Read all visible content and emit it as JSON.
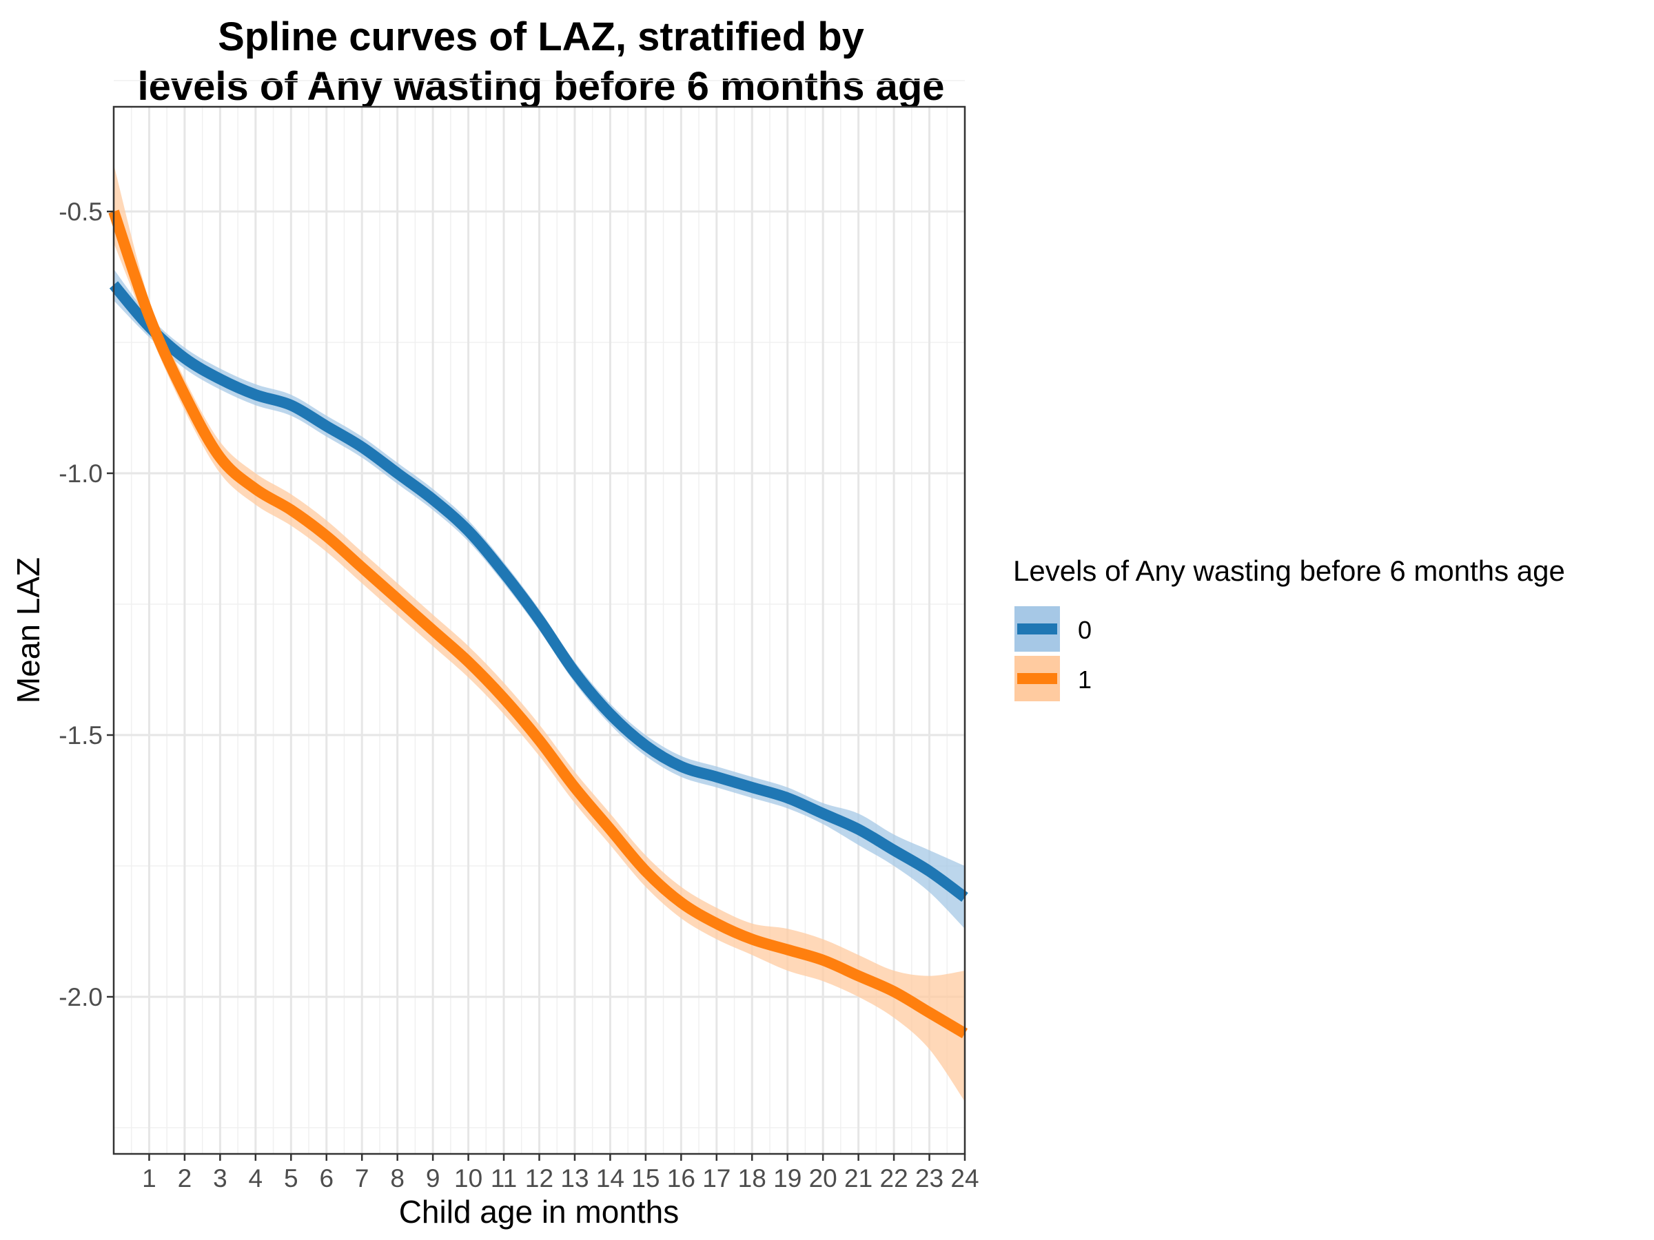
{
  "chart_data": {
    "type": "line",
    "title_lines": [
      "Spline curves of LAZ, stratified by",
      "levels of Any wasting before 6 months age"
    ],
    "xlabel": "Child age in months",
    "ylabel": "Mean LAZ",
    "xlim": [
      0,
      24
    ],
    "ylim": [
      -2.3,
      -0.3
    ],
    "x_ticks": [
      1,
      2,
      3,
      4,
      5,
      6,
      7,
      8,
      9,
      10,
      11,
      12,
      13,
      14,
      15,
      16,
      17,
      18,
      19,
      20,
      21,
      22,
      23,
      24
    ],
    "x_tick_labels": [
      "1",
      "2",
      "3",
      "4",
      "5",
      "6",
      "7",
      "8",
      "9",
      "10",
      "11",
      "12",
      "13",
      "14",
      "15",
      "16",
      "17",
      "18",
      "19",
      "20",
      "21",
      "22",
      "23",
      "24"
    ],
    "y_ticks": [
      -2.0,
      -1.5,
      -1.0,
      -0.5
    ],
    "y_tick_labels": [
      "-2.0",
      "-1.5",
      "-1.0",
      "-0.5"
    ],
    "y_minor_ticks": [
      -2.25,
      -1.75,
      -1.25,
      -0.75,
      -0.25
    ],
    "grid": true,
    "legend": {
      "title": "Levels of Any wasting before 6 months age",
      "position": "right"
    },
    "x": [
      0,
      1,
      2,
      3,
      4,
      5,
      6,
      7,
      8,
      9,
      10,
      11,
      12,
      13,
      14,
      15,
      16,
      17,
      18,
      19,
      20,
      21,
      22,
      23,
      24
    ],
    "series": [
      {
        "name": "0",
        "color": "#1F77B4",
        "band_color": "#A6C8E6",
        "values": [
          -0.64,
          -0.72,
          -0.78,
          -0.82,
          -0.85,
          -0.87,
          -0.91,
          -0.95,
          -1.0,
          -1.05,
          -1.11,
          -1.19,
          -1.28,
          -1.38,
          -1.46,
          -1.52,
          -1.56,
          -1.58,
          -1.6,
          -1.62,
          -1.65,
          -1.68,
          -1.72,
          -1.76,
          -1.81
        ],
        "lower": [
          -0.67,
          -0.74,
          -0.8,
          -0.84,
          -0.87,
          -0.89,
          -0.93,
          -0.97,
          -1.02,
          -1.07,
          -1.13,
          -1.21,
          -1.3,
          -1.4,
          -1.48,
          -1.54,
          -1.58,
          -1.6,
          -1.62,
          -1.64,
          -1.67,
          -1.71,
          -1.75,
          -1.8,
          -1.87
        ],
        "upper": [
          -0.61,
          -0.7,
          -0.76,
          -0.8,
          -0.83,
          -0.85,
          -0.89,
          -0.93,
          -0.98,
          -1.03,
          -1.09,
          -1.17,
          -1.26,
          -1.36,
          -1.44,
          -1.5,
          -1.54,
          -1.56,
          -1.58,
          -1.6,
          -1.63,
          -1.65,
          -1.69,
          -1.72,
          -1.75
        ]
      },
      {
        "name": "1",
        "color": "#FF7F0E",
        "band_color": "#FFCBA0",
        "values": [
          -0.5,
          -0.7,
          -0.85,
          -0.97,
          -1.03,
          -1.07,
          -1.12,
          -1.18,
          -1.24,
          -1.3,
          -1.36,
          -1.43,
          -1.51,
          -1.6,
          -1.68,
          -1.76,
          -1.82,
          -1.86,
          -1.89,
          -1.91,
          -1.93,
          -1.96,
          -1.99,
          -2.03,
          -2.07
        ],
        "lower": [
          -0.56,
          -0.73,
          -0.88,
          -1.0,
          -1.06,
          -1.1,
          -1.15,
          -1.21,
          -1.27,
          -1.33,
          -1.39,
          -1.46,
          -1.54,
          -1.63,
          -1.71,
          -1.79,
          -1.85,
          -1.89,
          -1.92,
          -1.95,
          -1.97,
          -2.0,
          -2.04,
          -2.1,
          -2.2
        ],
        "upper": [
          -0.41,
          -0.67,
          -0.82,
          -0.94,
          -1.0,
          -1.04,
          -1.09,
          -1.15,
          -1.21,
          -1.27,
          -1.33,
          -1.4,
          -1.48,
          -1.57,
          -1.65,
          -1.73,
          -1.79,
          -1.83,
          -1.86,
          -1.87,
          -1.89,
          -1.92,
          -1.95,
          -1.96,
          -1.95
        ]
      }
    ]
  }
}
